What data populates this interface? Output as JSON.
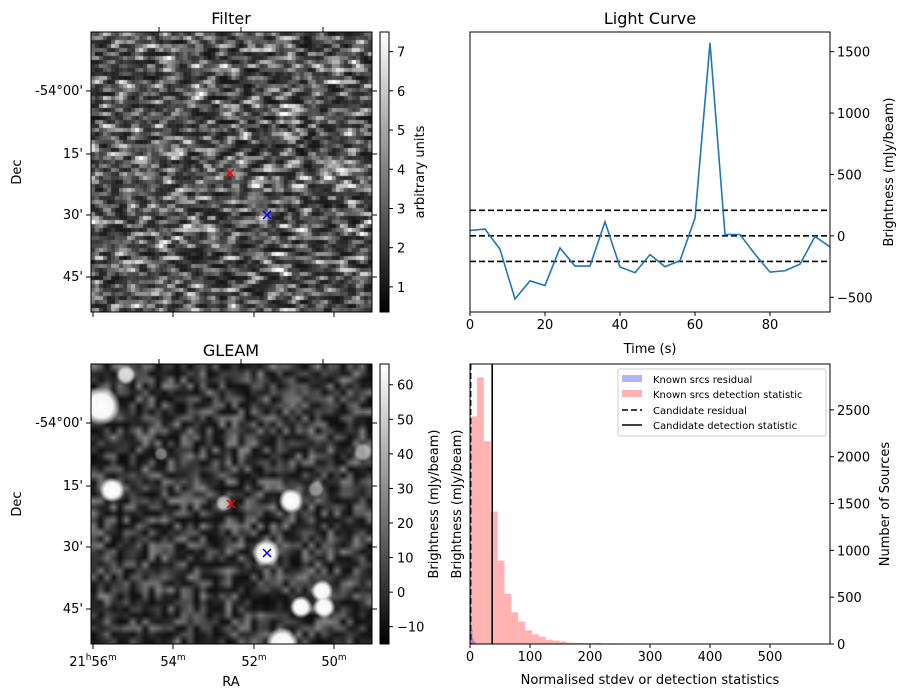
{
  "chart_data": [
    {
      "type": "heatmap",
      "title": "Filter",
      "ylabel": "Dec",
      "ytick_labels": [
        "-54°00'",
        "15'",
        "30'",
        "45'"
      ],
      "colorbar": {
        "label": "arbitrary units",
        "ticks": [
          1,
          2,
          3,
          4,
          5,
          6,
          7
        ],
        "range": [
          0.36,
          7.5
        ]
      },
      "markers": [
        {
          "color": "#ff0000",
          "symbol": "x"
        },
        {
          "color": "#0000ff",
          "symbol": "x"
        }
      ]
    },
    {
      "type": "line",
      "title": "Light Curve",
      "xlabel": "Time (s)",
      "ylabel": "Brightness (mJy/beam)",
      "xlim": [
        0,
        96
      ],
      "ylim": [
        -620,
        1660
      ],
      "xticks": [
        0,
        20,
        40,
        60,
        80
      ],
      "yticks": [
        -500,
        0,
        500,
        1000,
        1500
      ],
      "line_color": "#1f77b4",
      "x": [
        0,
        4,
        8,
        12,
        16,
        20,
        24,
        28,
        32,
        36,
        40,
        44,
        48,
        52,
        56,
        60,
        64,
        68,
        72,
        76,
        80,
        84,
        88,
        92,
        96
      ],
      "y": [
        44,
        55,
        -109,
        -514,
        -366,
        -404,
        -98,
        -246,
        -246,
        115,
        -254,
        -300,
        -153,
        -251,
        -202,
        145,
        1571,
        11,
        11,
        -150,
        -295,
        -284,
        -230,
        -5,
        -90
      ],
      "hlines": [
        208,
        0,
        -208
      ]
    },
    {
      "type": "heatmap",
      "title": "GLEAM",
      "xlabel": "RA",
      "ylabel": "Dec",
      "xtick_labels": [
        "21h56m",
        "54m",
        "52m",
        "50m"
      ],
      "ytick_labels": [
        "-54°00'",
        "15'",
        "30'",
        "45'"
      ],
      "colorbar": {
        "label": "Brightness (mJy/beam)",
        "ticks": [
          -10,
          0,
          10,
          20,
          30,
          40,
          50,
          60
        ],
        "range": [
          -15,
          66
        ]
      },
      "markers": [
        {
          "color": "#ff0000",
          "symbol": "x"
        },
        {
          "color": "#0000ff",
          "symbol": "x"
        }
      ]
    },
    {
      "type": "bar",
      "subtype": "histogram",
      "xlabel": "Normalised stdev or detection statistics",
      "ylabel_left": "Brightness (mJy/beam)",
      "ylabel_right": "Number of Sources",
      "xlim": [
        0,
        600
      ],
      "ylim": [
        0,
        2990
      ],
      "xticks": [
        0,
        100,
        200,
        300,
        400,
        500
      ],
      "yticks": [
        0,
        500,
        1000,
        1500,
        2000,
        2500
      ],
      "series": [
        {
          "name": "Known srcs residual",
          "color": "#0000ff",
          "alpha": 0.3,
          "bin_start": 0,
          "bin_width": 2,
          "values": [
            560,
            150,
            60,
            30,
            15,
            8,
            5,
            3
          ]
        },
        {
          "name": "Known srcs detection statistic",
          "color": "#ff0000",
          "alpha": 0.3,
          "bin_start": 0,
          "bin_width": 11.5,
          "values": [
            2430,
            2847,
            2164,
            1416,
            890,
            537,
            338,
            238,
            146,
            103,
            78,
            46,
            36,
            28,
            15,
            12,
            10,
            8,
            12,
            6,
            8,
            6,
            5,
            4,
            4,
            3,
            3,
            3,
            2,
            3,
            2,
            2,
            2,
            1,
            2,
            2,
            1,
            2,
            1,
            1,
            4,
            1,
            1,
            2,
            1,
            1,
            1,
            1,
            2,
            2
          ]
        }
      ],
      "vlines": [
        {
          "name": "Candidate residual",
          "x": 1,
          "style": "dashed",
          "color": "#000000"
        },
        {
          "name": "Candidate detection statistic",
          "x": 37,
          "style": "solid",
          "color": "#000000"
        }
      ],
      "legend": {
        "placement": "top-right",
        "entries": [
          "Known srcs residual",
          "Known srcs detection statistic",
          "Candidate residual",
          "Candidate detection statistic"
        ]
      }
    }
  ]
}
